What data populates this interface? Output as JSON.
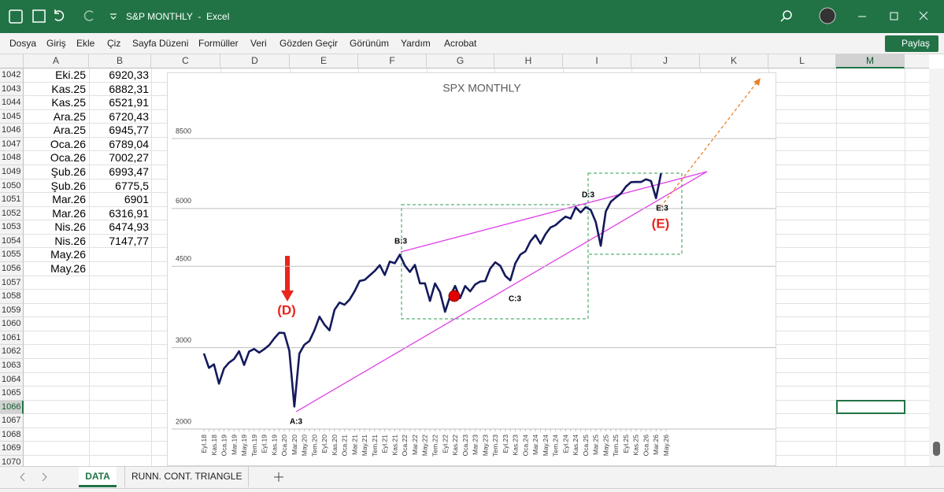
{
  "title_bar": {
    "title": "S&P MONTHLY  -  Excel"
  },
  "menu": [
    "Dosya",
    "Giriş",
    "Ekle",
    "Çiz",
    "Sayfa Düzeni",
    "Formüller",
    "Veri",
    "Gözden Geçir",
    "Görünüm",
    "Yardım",
    "Acrobat"
  ],
  "share": "Paylaş",
  "columns": [
    "A",
    "B",
    "C",
    "D",
    "E",
    "F",
    "G",
    "H",
    "I",
    "J",
    "K",
    "L",
    "M"
  ],
  "rows": [
    {
      "number": 1042,
      "A": "Eki.25",
      "B": "6920,33"
    },
    {
      "number": 1043,
      "A": "Kas.25",
      "B": "6882,31"
    },
    {
      "number": 1044,
      "A": "Kas.25",
      "B": "6521,91"
    },
    {
      "number": 1045,
      "A": "Ara.25",
      "B": "6720,43"
    },
    {
      "number": 1046,
      "A": "Ara.25",
      "B": "6945,77"
    },
    {
      "number": 1047,
      "A": "Oca.26",
      "B": "6789,04"
    },
    {
      "number": 1048,
      "A": "Oca.26",
      "B": "7002,27"
    },
    {
      "number": 1049,
      "A": "Şub.26",
      "B": "6993,47"
    },
    {
      "number": 1050,
      "A": "Şub.26",
      "B": "6775,5"
    },
    {
      "number": 1051,
      "A": "Mar.26",
      "B": "6901"
    },
    {
      "number": 1052,
      "A": "Mar.26",
      "B": "6316,91"
    },
    {
      "number": 1053,
      "A": "Nis.26",
      "B": "6474,93"
    },
    {
      "number": 1054,
      "A": "Nis.26",
      "B": "7147,77"
    },
    {
      "number": 1055,
      "A": "May.26"
    },
    {
      "number": 1056,
      "A": "May.26"
    },
    {
      "number": 1057
    },
    {
      "number": 1058
    },
    {
      "number": 1059
    },
    {
      "number": 1060
    },
    {
      "number": 1061
    },
    {
      "number": 1062
    },
    {
      "number": 1063
    },
    {
      "number": 1064
    },
    {
      "number": 1065
    },
    {
      "number": 1066
    },
    {
      "number": 1067
    },
    {
      "number": 1068
    },
    {
      "number": 1069
    },
    {
      "number": 1070
    }
  ],
  "sheet_tabs": [
    "DATA",
    "RUNN. CONT. TRIANGLE"
  ],
  "chart_data": {
    "type": "line",
    "title": "SPX MONTHLY",
    "log_scale": true,
    "grid": true,
    "ylim": [
      2000,
      8500
    ],
    "yticks": [
      2000,
      3000,
      4500,
      6000,
      8500
    ],
    "categories": [
      "Eyl.18",
      null,
      "Kas.18",
      null,
      "Oca.19",
      null,
      "Mar.19",
      null,
      "May.19",
      null,
      "Tem.19",
      null,
      "Eyl.19",
      null,
      "Kas.19",
      null,
      "Oca.20",
      null,
      "Mar.20",
      null,
      "May.20",
      null,
      "Tem.20",
      null,
      "Eyl.20",
      null,
      "Kas.20",
      null,
      "Oca.21",
      null,
      "Mar.21",
      null,
      "May.21",
      null,
      "Tem.21",
      null,
      "Eyl.21",
      null,
      "Kas.21",
      null,
      "Oca.22",
      null,
      "Mar.22",
      null,
      "May.22",
      null,
      "Tem.22",
      null,
      "Eyl.22",
      null,
      "Kas.22",
      null,
      "Oca.23",
      null,
      "Mar.23",
      null,
      "May.23",
      null,
      "Tem.23",
      null,
      "Eyl.23",
      null,
      "Kas.23",
      null,
      "Oca.24",
      null,
      "Mar.24",
      null,
      "May.24",
      null,
      "Tem.24",
      null,
      "Eyl.24",
      null,
      "Kas.24",
      null,
      "Oca.25",
      null,
      "Mar.25",
      null,
      "May.25",
      null,
      "Tem.25",
      null,
      "Eyl.25",
      null,
      "Kas.25",
      null,
      "Oca.26",
      null,
      "Mar.26",
      null,
      "May.26"
    ],
    "series": [
      {
        "color": "#131a5c",
        "values": [
          2914,
          2712,
          2760,
          2507,
          2704,
          2784,
          2834,
          2946,
          2752,
          2942,
          2980,
          2926,
          2977,
          3038,
          3141,
          3231,
          3226,
          2954,
          2237,
          2912,
          3044,
          3100,
          3271,
          3500,
          3363,
          3270,
          3622,
          3756,
          3714,
          3811,
          3973,
          4181,
          4204,
          4298,
          4395,
          4523,
          4308,
          4605,
          4567,
          4766,
          4516,
          4374,
          4530,
          4132,
          4132,
          3785,
          4130,
          3955,
          3586,
          3872,
          4080,
          3840,
          4077,
          3970,
          4109,
          4169,
          4180,
          4450,
          4589,
          4508,
          4288,
          4194,
          4568,
          4770,
          4846,
          5096,
          5254,
          5036,
          5278,
          5460,
          5522,
          5648,
          5762,
          5705,
          6032,
          5882,
          6041,
          5955,
          5612,
          4982,
          5912,
          6205,
          6339,
          6460,
          6688,
          6840,
          6849,
          6845,
          6939,
          6880,
          6316,
          7147,
          null
        ]
      }
    ],
    "annotations": [
      "A:3",
      "B:3",
      "C:3",
      "D:3",
      "E:3",
      "(D)",
      "(E)"
    ]
  }
}
